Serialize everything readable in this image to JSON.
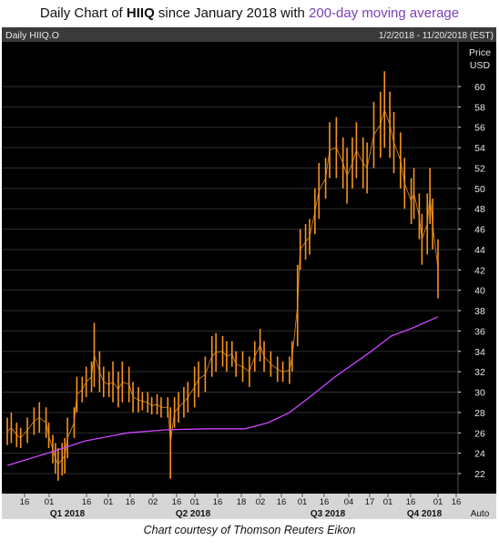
{
  "title": {
    "prefix": "Daily Chart of ",
    "ticker": "HIIQ",
    "middle": " since January 2018 with ",
    "ma_label": "200-day moving average"
  },
  "caption": "Chart courtesy of Thomson Reuters Eikon",
  "colors": {
    "background": "#000000",
    "header_bar": "#3a3a3a",
    "price_line": "#f7931e",
    "moving_average": "#cc44ff",
    "grid": "#2e2e2e",
    "axis_text": "#e8e8e8",
    "bottom_bar": "#d6d6d6"
  },
  "chart_data": {
    "type": "line",
    "instrument": "Daily HIIQ.O",
    "date_range": "1/2/2018 - 11/20/2018 (EST)",
    "ylabel": "Price",
    "yunit": "USD",
    "ylim": [
      20.5,
      62
    ],
    "yticks": [
      22,
      24,
      26,
      28,
      30,
      32,
      34,
      36,
      38,
      40,
      42,
      44,
      46,
      48,
      50,
      52,
      54,
      56,
      58,
      60
    ],
    "scale_mode": "Auto",
    "grid": true,
    "x_tick_labels": [
      "16",
      "01",
      "16",
      "01",
      "16",
      "02",
      "16",
      "01",
      "16",
      "18",
      "02",
      "16",
      "01",
      "16",
      "04",
      "17",
      "01",
      "16",
      "01",
      "16"
    ],
    "quarter_labels": [
      "Q1 2018",
      "Q2 2018",
      "Q3 2018",
      "Q4 2018"
    ],
    "series": [
      {
        "name": "HIIQ",
        "style": "high-low bars",
        "points": [
          {
            "date": "2018-01-02",
            "low": 24.8,
            "high": 27.5
          },
          {
            "date": "2018-01-05",
            "low": 25.0,
            "high": 28.0
          },
          {
            "date": "2018-01-09",
            "low": 24.6,
            "high": 27.0
          },
          {
            "date": "2018-01-12",
            "low": 24.5,
            "high": 26.5
          },
          {
            "date": "2018-01-17",
            "low": 25.0,
            "high": 27.5
          },
          {
            "date": "2018-01-22",
            "low": 25.8,
            "high": 28.5
          },
          {
            "date": "2018-01-26",
            "low": 26.0,
            "high": 29.0
          },
          {
            "date": "2018-01-31",
            "low": 25.5,
            "high": 28.5
          },
          {
            "date": "2018-02-02",
            "low": 24.5,
            "high": 27.0
          },
          {
            "date": "2018-02-05",
            "low": 23.0,
            "high": 25.8
          },
          {
            "date": "2018-02-07",
            "low": 22.0,
            "high": 25.0
          },
          {
            "date": "2018-02-09",
            "low": 21.3,
            "high": 24.5
          },
          {
            "date": "2018-02-12",
            "low": 21.8,
            "high": 25.0
          },
          {
            "date": "2018-02-14",
            "low": 22.0,
            "high": 25.5
          },
          {
            "date": "2018-02-16",
            "low": 23.5,
            "high": 27.5
          },
          {
            "date": "2018-02-21",
            "low": 25.5,
            "high": 28.5
          },
          {
            "date": "2018-02-23",
            "low": 28.0,
            "high": 31.5
          },
          {
            "date": "2018-02-27",
            "low": 29.0,
            "high": 31.5
          },
          {
            "date": "2018-03-02",
            "low": 29.5,
            "high": 32.5
          },
          {
            "date": "2018-03-06",
            "low": 30.0,
            "high": 33.0
          },
          {
            "date": "2018-03-08",
            "low": 30.5,
            "high": 36.8
          },
          {
            "date": "2018-03-12",
            "low": 30.0,
            "high": 34.0
          },
          {
            "date": "2018-03-15",
            "low": 29.5,
            "high": 32.5
          },
          {
            "date": "2018-03-19",
            "low": 29.5,
            "high": 32.0
          },
          {
            "date": "2018-03-22",
            "low": 29.0,
            "high": 33.0
          },
          {
            "date": "2018-03-26",
            "low": 28.5,
            "high": 32.0
          },
          {
            "date": "2018-03-29",
            "low": 29.0,
            "high": 33.0
          },
          {
            "date": "2018-04-03",
            "low": 29.0,
            "high": 32.5
          },
          {
            "date": "2018-04-06",
            "low": 28.0,
            "high": 31.0
          },
          {
            "date": "2018-04-10",
            "low": 28.0,
            "high": 30.5
          },
          {
            "date": "2018-04-13",
            "low": 28.2,
            "high": 30.0
          },
          {
            "date": "2018-04-17",
            "low": 28.0,
            "high": 30.0
          },
          {
            "date": "2018-04-20",
            "low": 27.8,
            "high": 29.5
          },
          {
            "date": "2018-04-24",
            "low": 27.8,
            "high": 29.8
          },
          {
            "date": "2018-04-27",
            "low": 27.5,
            "high": 29.5
          },
          {
            "date": "2018-05-02",
            "low": 27.5,
            "high": 29.5
          },
          {
            "date": "2018-05-04",
            "low": 21.5,
            "high": 28.5
          },
          {
            "date": "2018-05-07",
            "low": 26.5,
            "high": 29.5
          },
          {
            "date": "2018-05-10",
            "low": 27.0,
            "high": 30.0
          },
          {
            "date": "2018-05-14",
            "low": 27.5,
            "high": 30.5
          },
          {
            "date": "2018-05-17",
            "low": 28.0,
            "high": 31.0
          },
          {
            "date": "2018-05-22",
            "low": 28.5,
            "high": 32.5
          },
          {
            "date": "2018-05-25",
            "low": 29.5,
            "high": 33.0
          },
          {
            "date": "2018-05-30",
            "low": 30.0,
            "high": 33.5
          },
          {
            "date": "2018-06-04",
            "low": 31.5,
            "high": 35.5
          },
          {
            "date": "2018-06-07",
            "low": 32.0,
            "high": 35.8
          },
          {
            "date": "2018-06-12",
            "low": 32.5,
            "high": 35.5
          },
          {
            "date": "2018-06-15",
            "low": 32.0,
            "high": 35.0
          },
          {
            "date": "2018-06-19",
            "low": 32.5,
            "high": 35.0
          },
          {
            "date": "2018-06-22",
            "low": 31.5,
            "high": 34.0
          },
          {
            "date": "2018-06-27",
            "low": 31.0,
            "high": 34.0
          },
          {
            "date": "2018-07-02",
            "low": 30.5,
            "high": 33.5
          },
          {
            "date": "2018-07-06",
            "low": 32.0,
            "high": 35.0
          },
          {
            "date": "2018-07-10",
            "low": 33.0,
            "high": 36.2
          },
          {
            "date": "2018-07-13",
            "low": 32.0,
            "high": 35.0
          },
          {
            "date": "2018-07-18",
            "low": 31.5,
            "high": 34.0
          },
          {
            "date": "2018-07-23",
            "low": 31.0,
            "high": 33.5
          },
          {
            "date": "2018-07-27",
            "low": 31.0,
            "high": 33.0
          },
          {
            "date": "2018-08-01",
            "low": 30.8,
            "high": 33.5
          },
          {
            "date": "2018-08-03",
            "low": 32.0,
            "high": 35.0
          },
          {
            "date": "2018-08-07",
            "low": 34.5,
            "high": 42.5
          },
          {
            "date": "2018-08-09",
            "low": 42.0,
            "high": 46.0
          },
          {
            "date": "2018-08-13",
            "low": 43.0,
            "high": 46.5
          },
          {
            "date": "2018-08-16",
            "low": 43.5,
            "high": 47.0
          },
          {
            "date": "2018-08-20",
            "low": 45.5,
            "high": 50.0
          },
          {
            "date": "2018-08-23",
            "low": 47.0,
            "high": 52.5
          },
          {
            "date": "2018-08-28",
            "low": 49.0,
            "high": 53.0
          },
          {
            "date": "2018-08-31",
            "low": 51.0,
            "high": 56.5
          },
          {
            "date": "2018-09-05",
            "low": 51.0,
            "high": 57.0
          },
          {
            "date": "2018-09-10",
            "low": 50.0,
            "high": 55.0
          },
          {
            "date": "2018-09-13",
            "low": 48.5,
            "high": 54.0
          },
          {
            "date": "2018-09-17",
            "low": 50.0,
            "high": 55.0
          },
          {
            "date": "2018-09-20",
            "low": 51.0,
            "high": 56.5
          },
          {
            "date": "2018-09-25",
            "low": 50.0,
            "high": 55.0
          },
          {
            "date": "2018-09-28",
            "low": 49.5,
            "high": 54.5
          },
          {
            "date": "2018-10-03",
            "low": 52.0,
            "high": 58.5
          },
          {
            "date": "2018-10-08",
            "low": 53.0,
            "high": 59.5
          },
          {
            "date": "2018-10-11",
            "low": 54.0,
            "high": 61.5
          },
          {
            "date": "2018-10-15",
            "low": 53.0,
            "high": 59.5
          },
          {
            "date": "2018-10-18",
            "low": 51.5,
            "high": 57.5
          },
          {
            "date": "2018-10-23",
            "low": 50.0,
            "high": 55.5
          },
          {
            "date": "2018-10-26",
            "low": 48.0,
            "high": 53.0
          },
          {
            "date": "2018-10-31",
            "low": 46.5,
            "high": 51.0
          },
          {
            "date": "2018-11-02",
            "low": 47.0,
            "high": 52.0
          },
          {
            "date": "2018-11-06",
            "low": 45.0,
            "high": 49.5
          },
          {
            "date": "2018-11-08",
            "low": 42.5,
            "high": 47.5
          },
          {
            "date": "2018-11-12",
            "low": 43.5,
            "high": 49.5
          },
          {
            "date": "2018-11-14",
            "low": 46.5,
            "high": 52.0
          },
          {
            "date": "2018-11-16",
            "low": 44.0,
            "high": 49.0
          },
          {
            "date": "2018-11-20",
            "low": 39.2,
            "high": 45.0
          }
        ]
      },
      {
        "name": "200-day moving average",
        "points": [
          {
            "date": "2018-01-02",
            "value": 22.8
          },
          {
            "date": "2018-02-01",
            "value": 24.0
          },
          {
            "date": "2018-03-01",
            "value": 25.2
          },
          {
            "date": "2018-04-02",
            "value": 26.0
          },
          {
            "date": "2018-05-01",
            "value": 26.3
          },
          {
            "date": "2018-06-01",
            "value": 26.4
          },
          {
            "date": "2018-06-29",
            "value": 26.4
          },
          {
            "date": "2018-07-16",
            "value": 27.0
          },
          {
            "date": "2018-08-01",
            "value": 28.0
          },
          {
            "date": "2018-08-16",
            "value": 29.5
          },
          {
            "date": "2018-09-04",
            "value": 31.5
          },
          {
            "date": "2018-10-01",
            "value": 34.0
          },
          {
            "date": "2018-10-16",
            "value": 35.5
          },
          {
            "date": "2018-11-01",
            "value": 36.3
          },
          {
            "date": "2018-11-20",
            "value": 37.4
          }
        ]
      }
    ]
  }
}
